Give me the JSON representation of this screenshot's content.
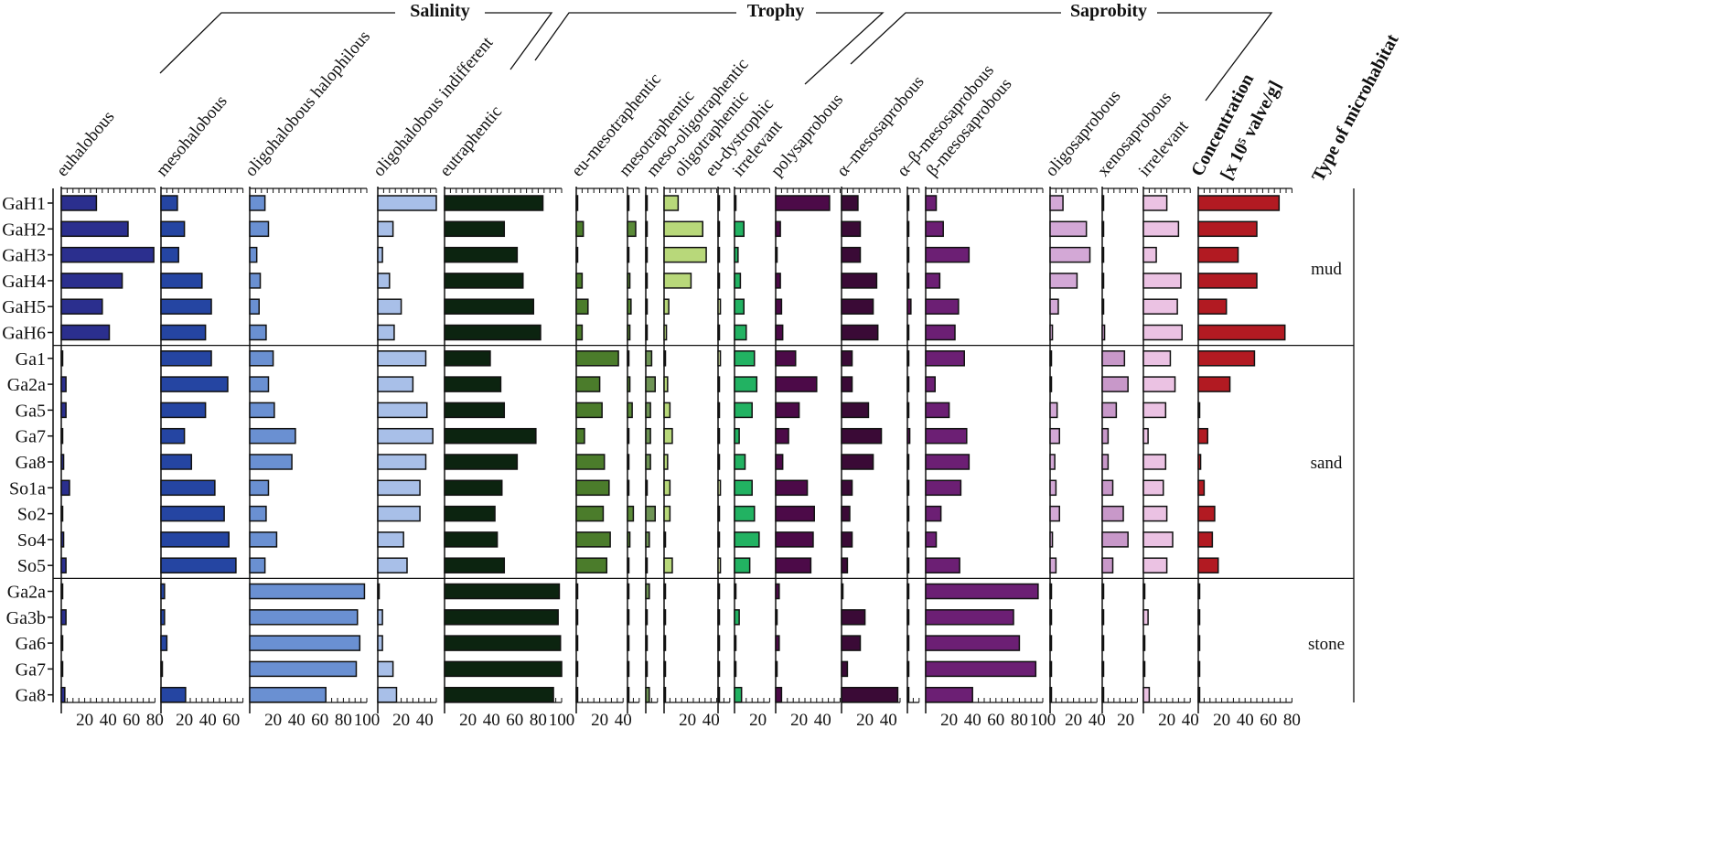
{
  "chart_data": {
    "type": "bar",
    "orientation": "horizontal",
    "groups": [
      "Salinity",
      "Trophy",
      "Saprobity"
    ],
    "categories": [
      "GaH1",
      "GaH2",
      "GaH3",
      "GaH4",
      "GaH5",
      "GaH6",
      "Ga1",
      "Ga2a",
      "Ga5",
      "Ga7",
      "Ga8",
      "So1a",
      "So2",
      "So4",
      "So5",
      "Ga2a",
      "Ga3b",
      "Ga6",
      "Ga7",
      "Ga8"
    ],
    "habitat_title": "Type of microhabitat",
    "habitats": [
      {
        "label": "mud",
        "rows": [
          0,
          5
        ]
      },
      {
        "label": "sand",
        "rows": [
          6,
          14
        ]
      },
      {
        "label": "stone",
        "rows": [
          15,
          19
        ]
      }
    ],
    "panels": [
      {
        "label": "euhalobous",
        "group": "Salinity",
        "color": "#2b2f8e",
        "xlim": [
          0,
          80
        ],
        "ticks": [
          20,
          40,
          60,
          80
        ],
        "values": [
          30,
          57,
          79,
          52,
          35,
          41,
          1,
          4,
          4,
          1,
          2,
          7,
          1,
          2,
          4,
          0,
          4,
          1,
          0,
          3
        ]
      },
      {
        "label": "mesohalobous",
        "group": "Salinity",
        "color": "#2545a2",
        "xlim": [
          0,
          70
        ],
        "ticks": [
          20,
          40,
          60
        ],
        "values": [
          14,
          20,
          15,
          35,
          43,
          38,
          43,
          57,
          38,
          20,
          26,
          46,
          54,
          58,
          64,
          3,
          3,
          5,
          1,
          21
        ]
      },
      {
        "label": "oligohalobous halophilous",
        "group": "Salinity",
        "color": "#6a90d2",
        "xlim": [
          0,
          100
        ],
        "ticks": [
          20,
          40,
          60,
          80,
          100
        ],
        "values": [
          13,
          16,
          6,
          9,
          8,
          14,
          20,
          16,
          21,
          39,
          36,
          16,
          14,
          23,
          13,
          98,
          92,
          94,
          91,
          65
        ]
      },
      {
        "label": "oligohalobous indifferent",
        "group": "Salinity",
        "color": "#a8bfe8",
        "xlim": [
          0,
          50
        ],
        "ticks": [
          20,
          40
        ],
        "values": [
          50,
          13,
          4,
          10,
          20,
          14,
          41,
          30,
          42,
          47,
          41,
          36,
          36,
          22,
          25,
          1,
          4,
          4,
          13,
          16
        ]
      },
      {
        "label": "eutraphentic",
        "group": "Trophy",
        "color": "#0c2410",
        "xlim": [
          0,
          100
        ],
        "ticks": [
          20,
          40,
          60,
          80,
          100
        ],
        "values": [
          84,
          51,
          62,
          67,
          76,
          82,
          39,
          48,
          51,
          78,
          62,
          49,
          43,
          45,
          51,
          98,
          97,
          99,
          100,
          93
        ]
      },
      {
        "label": "eu-mesotraphentic",
        "group": "Trophy",
        "color": "#4b7c2b",
        "xlim": [
          0,
          40
        ],
        "ticks": [
          20,
          40
        ],
        "values": [
          1,
          6,
          0,
          5,
          10,
          5,
          36,
          20,
          22,
          7,
          24,
          28,
          23,
          29,
          26,
          0,
          0,
          1,
          0,
          1
        ]
      },
      {
        "label": "mesotraphentic",
        "group": "Trophy",
        "color": "#5a8a38",
        "xlim": [
          0,
          10
        ],
        "ticks": [],
        "values": [
          1,
          7,
          1,
          2,
          3,
          2,
          0,
          2,
          4,
          1,
          1,
          1,
          5,
          2,
          1,
          0,
          0,
          0,
          1,
          0
        ]
      },
      {
        "label": "meso-oligotraphentic",
        "group": "Trophy",
        "color": "#6e9455",
        "xlim": [
          0,
          10
        ],
        "ticks": [],
        "values": [
          0,
          0,
          0,
          0,
          0,
          1,
          5,
          8,
          4,
          4,
          4,
          0,
          8,
          3,
          0,
          3,
          0,
          0,
          0,
          3
        ]
      },
      {
        "label": "oligotraphentic",
        "group": "Trophy",
        "color": "#b8d87a",
        "xlim": [
          0,
          45
        ],
        "ticks": [
          20,
          40
        ],
        "values": [
          12,
          33,
          36,
          23,
          4,
          2,
          1,
          3,
          5,
          7,
          3,
          5,
          5,
          1,
          7,
          0,
          0,
          0,
          0,
          1
        ]
      },
      {
        "label": "eu-dystrophic",
        "group": "Trophy",
        "color": "#d9e7a6",
        "xlim": [
          0,
          10
        ],
        "ticks": [],
        "values": [
          0,
          1,
          0,
          0,
          2,
          1,
          2,
          0,
          0,
          0,
          0,
          2,
          0,
          0,
          2,
          0,
          0,
          0,
          0,
          0
        ]
      },
      {
        "label": "irrelevant",
        "group": "Trophy",
        "color": "#22b262",
        "xlim": [
          0,
          30
        ],
        "ticks": [
          20
        ],
        "values": [
          0,
          8,
          3,
          5,
          8,
          10,
          17,
          19,
          15,
          4,
          9,
          15,
          17,
          21,
          13,
          1,
          4,
          1,
          1,
          6
        ]
      },
      {
        "label": "polysaprobous",
        "group": "Saprobity",
        "color": "#4c0a48",
        "xlim": [
          0,
          55
        ],
        "ticks": [
          20,
          40
        ],
        "values": [
          46,
          4,
          1,
          4,
          5,
          6,
          17,
          35,
          20,
          11,
          6,
          27,
          33,
          32,
          30,
          3,
          1,
          3,
          1,
          5
        ]
      },
      {
        "label": "α–mesosaprobous",
        "group": "Saprobity",
        "color": "#3a0a36",
        "xlim": [
          0,
          50
        ],
        "ticks": [
          20,
          40
        ],
        "values": [
          14,
          16,
          16,
          30,
          27,
          31,
          9,
          9,
          23,
          34,
          27,
          9,
          7,
          9,
          5,
          1,
          20,
          16,
          5,
          48
        ]
      },
      {
        "label": "α–β-mesosaprobous",
        "group": "Saprobity",
        "color": "#5a1556",
        "xlim": [
          0,
          10
        ],
        "ticks": [],
        "values": [
          0,
          1,
          0,
          0,
          3,
          1,
          0,
          0,
          0,
          2,
          0,
          0,
          0,
          0,
          0,
          0,
          0,
          0,
          0,
          0
        ]
      },
      {
        "label": "β-mesosaprobous",
        "group": "Saprobity",
        "color": "#6c1f74",
        "xlim": [
          0,
          100
        ],
        "ticks": [
          20,
          40,
          60,
          80,
          100
        ],
        "values": [
          9,
          15,
          37,
          12,
          28,
          25,
          33,
          8,
          20,
          35,
          37,
          30,
          13,
          9,
          29,
          96,
          75,
          80,
          94,
          40
        ]
      },
      {
        "label": "oligosaprobous",
        "group": "Saprobity",
        "color": "#d3a8d6",
        "xlim": [
          0,
          40
        ],
        "ticks": [
          20,
          40
        ],
        "values": [
          11,
          31,
          34,
          23,
          7,
          2,
          0,
          0,
          6,
          8,
          4,
          5,
          8,
          2,
          5,
          0,
          0,
          1,
          0,
          1
        ]
      },
      {
        "label": "xenosaprobous",
        "group": "Saprobity",
        "color": "#c898c9",
        "xlim": [
          0,
          30
        ],
        "ticks": [
          20
        ],
        "values": [
          0,
          1,
          0,
          0,
          0,
          2,
          19,
          22,
          12,
          5,
          5,
          9,
          18,
          22,
          9,
          0,
          0,
          0,
          0,
          0
        ]
      },
      {
        "label": "irrelevant",
        "group": "Saprobity",
        "color": "#ebc2e3",
        "xlim": [
          0,
          40
        ],
        "ticks": [
          20,
          40
        ],
        "values": [
          20,
          30,
          11,
          32,
          29,
          33,
          23,
          27,
          19,
          4,
          19,
          17,
          20,
          25,
          20,
          1,
          4,
          1,
          1,
          5
        ]
      },
      {
        "label": "Concentration",
        "sublabel": "[x 10⁵ valve/g]",
        "group": "",
        "color": "#b21a22",
        "xlim": [
          0,
          80
        ],
        "ticks": [
          20,
          40,
          60,
          80
        ],
        "values": [
          69,
          50,
          34,
          50,
          24,
          74,
          48,
          27,
          1,
          8,
          2,
          5,
          14,
          12,
          17,
          0,
          0,
          0,
          0,
          0
        ]
      }
    ]
  }
}
